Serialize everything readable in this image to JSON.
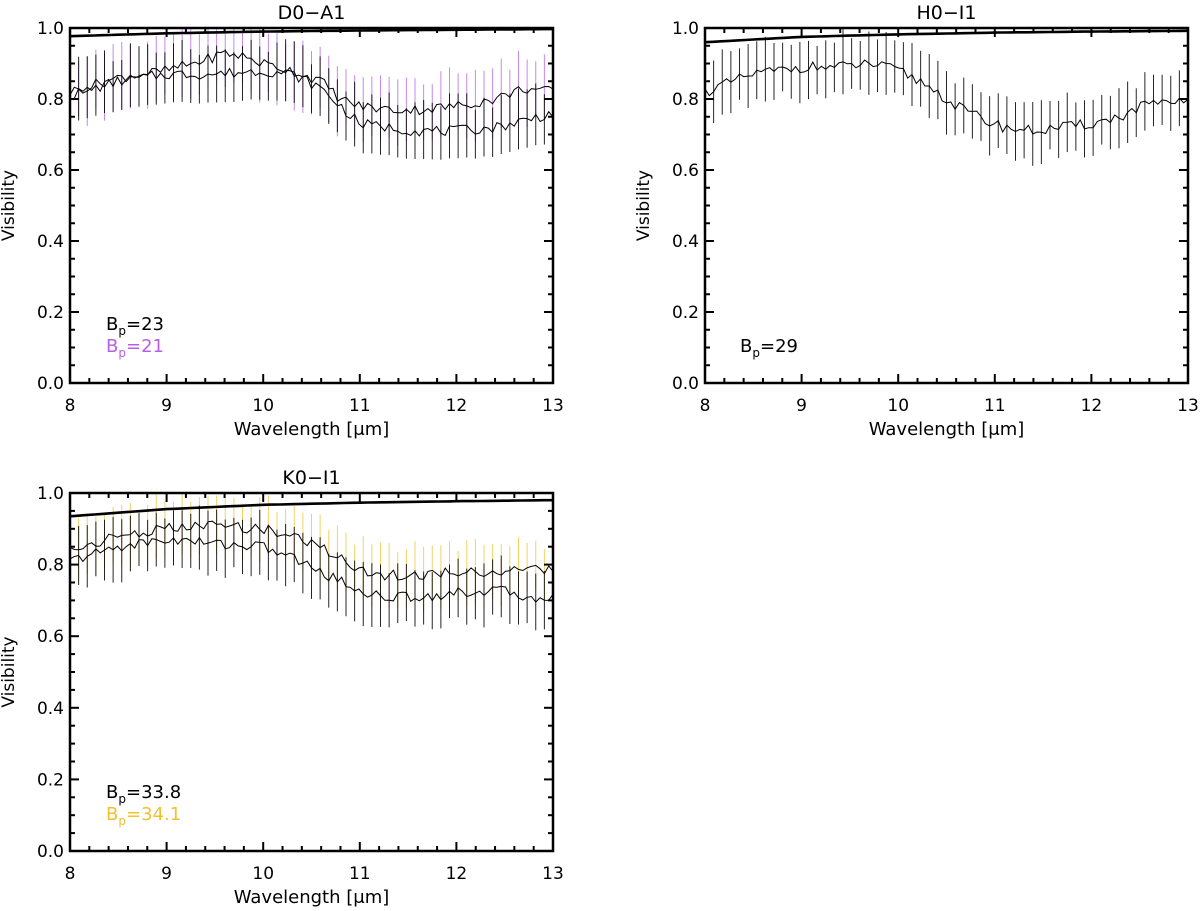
{
  "chart_data": [
    {
      "type": "line",
      "title": "D0−A1",
      "xlabel": "Wavelength [μm]",
      "ylabel": "Visibility",
      "xlim": [
        8,
        13
      ],
      "ylim": [
        0,
        1.0
      ],
      "xticks": [
        "8",
        "9",
        "10",
        "11",
        "12",
        "13"
      ],
      "yticks": [
        "0.0",
        "0.2",
        "0.4",
        "0.6",
        "0.8",
        "1.0"
      ],
      "colors": {
        "black": "#000000",
        "second": "#b75fe6"
      },
      "annotations": [
        {
          "base": "B",
          "sub": "p",
          "value": "=23",
          "color": "#000000"
        },
        {
          "base": "B",
          "sub": "p",
          "value": "=21",
          "color": "#b75fe6"
        }
      ],
      "series": [
        {
          "name": "model",
          "kind": "model",
          "x": [
            8,
            9,
            10,
            11,
            12,
            13
          ],
          "values": [
            0.977,
            0.985,
            0.99,
            0.993,
            0.995,
            0.997
          ]
        },
        {
          "name": "B_p=21",
          "kind": "data",
          "color": "#b75fe6",
          "err": 0.09,
          "x": [
            8,
            8.5,
            9,
            9.4,
            9.6,
            9.8,
            10,
            10.3,
            10.6,
            10.8,
            11,
            11.3,
            11.6,
            12,
            12.4,
            12.7,
            13
          ],
          "values": [
            0.82,
            0.86,
            0.88,
            0.91,
            0.93,
            0.92,
            0.9,
            0.88,
            0.85,
            0.8,
            0.78,
            0.77,
            0.77,
            0.78,
            0.8,
            0.83,
            0.82
          ]
        },
        {
          "name": "B_p=23",
          "kind": "data",
          "color": "#000000",
          "err": 0.08,
          "x": [
            8,
            8.5,
            9,
            9.5,
            10,
            10.3,
            10.6,
            10.8,
            11,
            11.3,
            11.6,
            12,
            12.4,
            12.7,
            13
          ],
          "values": [
            0.81,
            0.85,
            0.87,
            0.87,
            0.88,
            0.87,
            0.83,
            0.78,
            0.73,
            0.72,
            0.71,
            0.71,
            0.72,
            0.74,
            0.76
          ]
        }
      ]
    },
    {
      "type": "line",
      "title": "H0−I1",
      "xlabel": "Wavelength [μm]",
      "ylabel": "Visibility",
      "xlim": [
        8,
        13
      ],
      "ylim": [
        0,
        1.0
      ],
      "xticks": [
        "8",
        "9",
        "10",
        "11",
        "12",
        "13"
      ],
      "yticks": [
        "0.0",
        "0.2",
        "0.4",
        "0.6",
        "0.8",
        "1.0"
      ],
      "colors": {
        "black": "#000000"
      },
      "annotations": [
        {
          "base": "B",
          "sub": "p",
          "value": "=29",
          "color": "#000000"
        }
      ],
      "series": [
        {
          "name": "model",
          "kind": "model",
          "x": [
            8,
            9,
            10,
            11,
            12,
            13
          ],
          "values": [
            0.96,
            0.975,
            0.982,
            0.987,
            0.99,
            0.992
          ]
        },
        {
          "name": "B_p=29",
          "kind": "data",
          "color": "#000000",
          "err": 0.08,
          "x": [
            8,
            8.5,
            9,
            9.4,
            9.7,
            10,
            10.3,
            10.6,
            10.9,
            11.1,
            11.4,
            11.7,
            12,
            12.3,
            12.6,
            12.8,
            13
          ],
          "values": [
            0.82,
            0.87,
            0.89,
            0.89,
            0.9,
            0.88,
            0.84,
            0.78,
            0.74,
            0.72,
            0.71,
            0.72,
            0.73,
            0.75,
            0.79,
            0.78,
            0.8
          ]
        }
      ]
    },
    {
      "type": "line",
      "title": "K0−I1",
      "xlabel": "Wavelength [μm]",
      "ylabel": "Visibility",
      "xlim": [
        8,
        13
      ],
      "ylim": [
        0,
        1.0
      ],
      "xticks": [
        "8",
        "9",
        "10",
        "11",
        "12",
        "13"
      ],
      "yticks": [
        "0.0",
        "0.2",
        "0.4",
        "0.6",
        "0.8",
        "1.0"
      ],
      "colors": {
        "black": "#000000",
        "second": "#f2c12e"
      },
      "annotations": [
        {
          "base": "B",
          "sub": "p",
          "value": "=33.8",
          "color": "#000000"
        },
        {
          "base": "B",
          "sub": "p",
          "value": "=34.1",
          "color": "#f2c12e"
        }
      ],
      "series": [
        {
          "name": "model",
          "kind": "model",
          "x": [
            8,
            9,
            10,
            11,
            12,
            13
          ],
          "values": [
            0.935,
            0.955,
            0.967,
            0.973,
            0.977,
            0.98
          ]
        },
        {
          "name": "B_p=34.1",
          "kind": "data",
          "color": "#f2c12e",
          "err": 0.08,
          "x": [
            8,
            8.5,
            9,
            9.5,
            10,
            10.3,
            10.6,
            10.9,
            11.2,
            11.6,
            12,
            12.4,
            12.7,
            13
          ],
          "values": [
            0.84,
            0.88,
            0.9,
            0.91,
            0.9,
            0.88,
            0.85,
            0.8,
            0.77,
            0.77,
            0.78,
            0.78,
            0.78,
            0.79
          ]
        },
        {
          "name": "B_p=33.8",
          "kind": "data",
          "color": "#000000",
          "err": 0.08,
          "x": [
            8,
            8.5,
            9,
            9.5,
            10,
            10.3,
            10.6,
            10.9,
            11.2,
            11.6,
            12,
            12.4,
            12.7,
            13
          ],
          "values": [
            0.81,
            0.85,
            0.87,
            0.86,
            0.85,
            0.82,
            0.78,
            0.74,
            0.71,
            0.71,
            0.72,
            0.73,
            0.71,
            0.71
          ]
        }
      ]
    }
  ]
}
